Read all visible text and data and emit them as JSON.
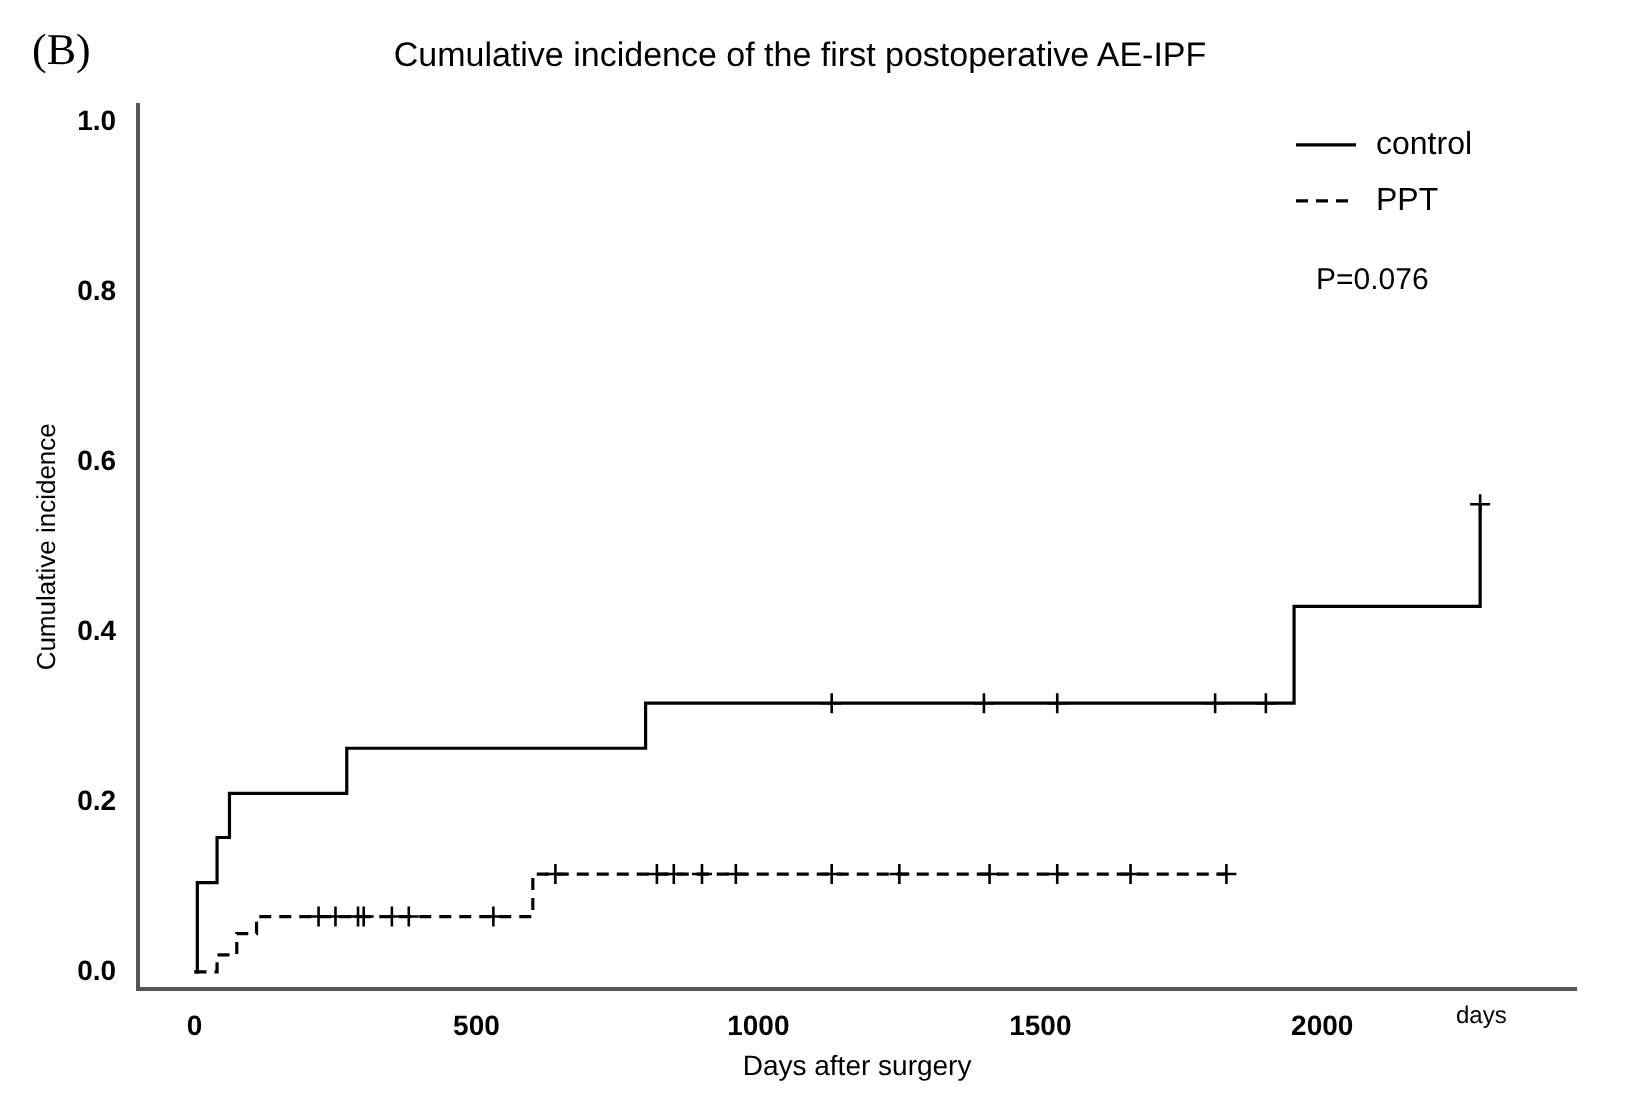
{
  "chart_data": {
    "type": "step",
    "title": "Cumulative incidence of the first postoperative AE-IPF",
    "xlabel": "Days after surgery",
    "ylabel": "Cumulative incidence",
    "annotations": [
      "(B)",
      "P=0.076",
      "days"
    ],
    "series": [
      {
        "name": "control",
        "color": "#000000",
        "line_style": "solid",
        "x": [
          0,
          5,
          40,
          62,
          270,
          800,
          1950,
          2280,
          2280
        ],
        "values": [
          0,
          0.105,
          0.158,
          0.21,
          0.263,
          0.316,
          0.43,
          0.43,
          0.55
        ]
      },
      {
        "name": "PPT",
        "color": "#000000",
        "line_style": "dashed",
        "x": [
          0,
          40,
          75,
          110,
          600,
          1830
        ],
        "values": [
          0,
          0.02,
          0.045,
          0.065,
          0.115,
          0.115
        ]
      },
      {
        "type": "scatter",
        "color": "#000000",
        "marker": "cross",
        "x": [
          1130,
          1400,
          1530,
          1810,
          1900,
          2280
        ],
        "values": [
          0.316,
          0.316,
          0.316,
          0.316,
          0.316,
          0.55
        ]
      },
      {
        "type": "scatter",
        "color": "#000000",
        "marker": "cross",
        "x": [
          220,
          250,
          290,
          300,
          350,
          380,
          530,
          640,
          820,
          850,
          900,
          960,
          1130,
          1250,
          1410,
          1530,
          1660,
          1830
        ],
        "values": [
          0.065,
          0.065,
          0.065,
          0.065,
          0.065,
          0.065,
          0.065,
          0.115,
          0.115,
          0.115,
          0.115,
          0.115,
          0.115,
          0.115,
          0.115,
          0.115,
          0.115,
          0.115
        ]
      }
    ],
    "xlim": [
      -100,
      2450
    ],
    "xticks": [
      0,
      500,
      1000,
      1500,
      2000
    ],
    "ylim": [
      -0.02,
      1.02
    ],
    "yticks": [
      {
        "value": 0,
        "label": "0.0"
      },
      0.2,
      0.4,
      0.6,
      0.8,
      {
        "value": 1,
        "label": "1.0"
      }
    ],
    "grid": false,
    "legend": "top right"
  }
}
